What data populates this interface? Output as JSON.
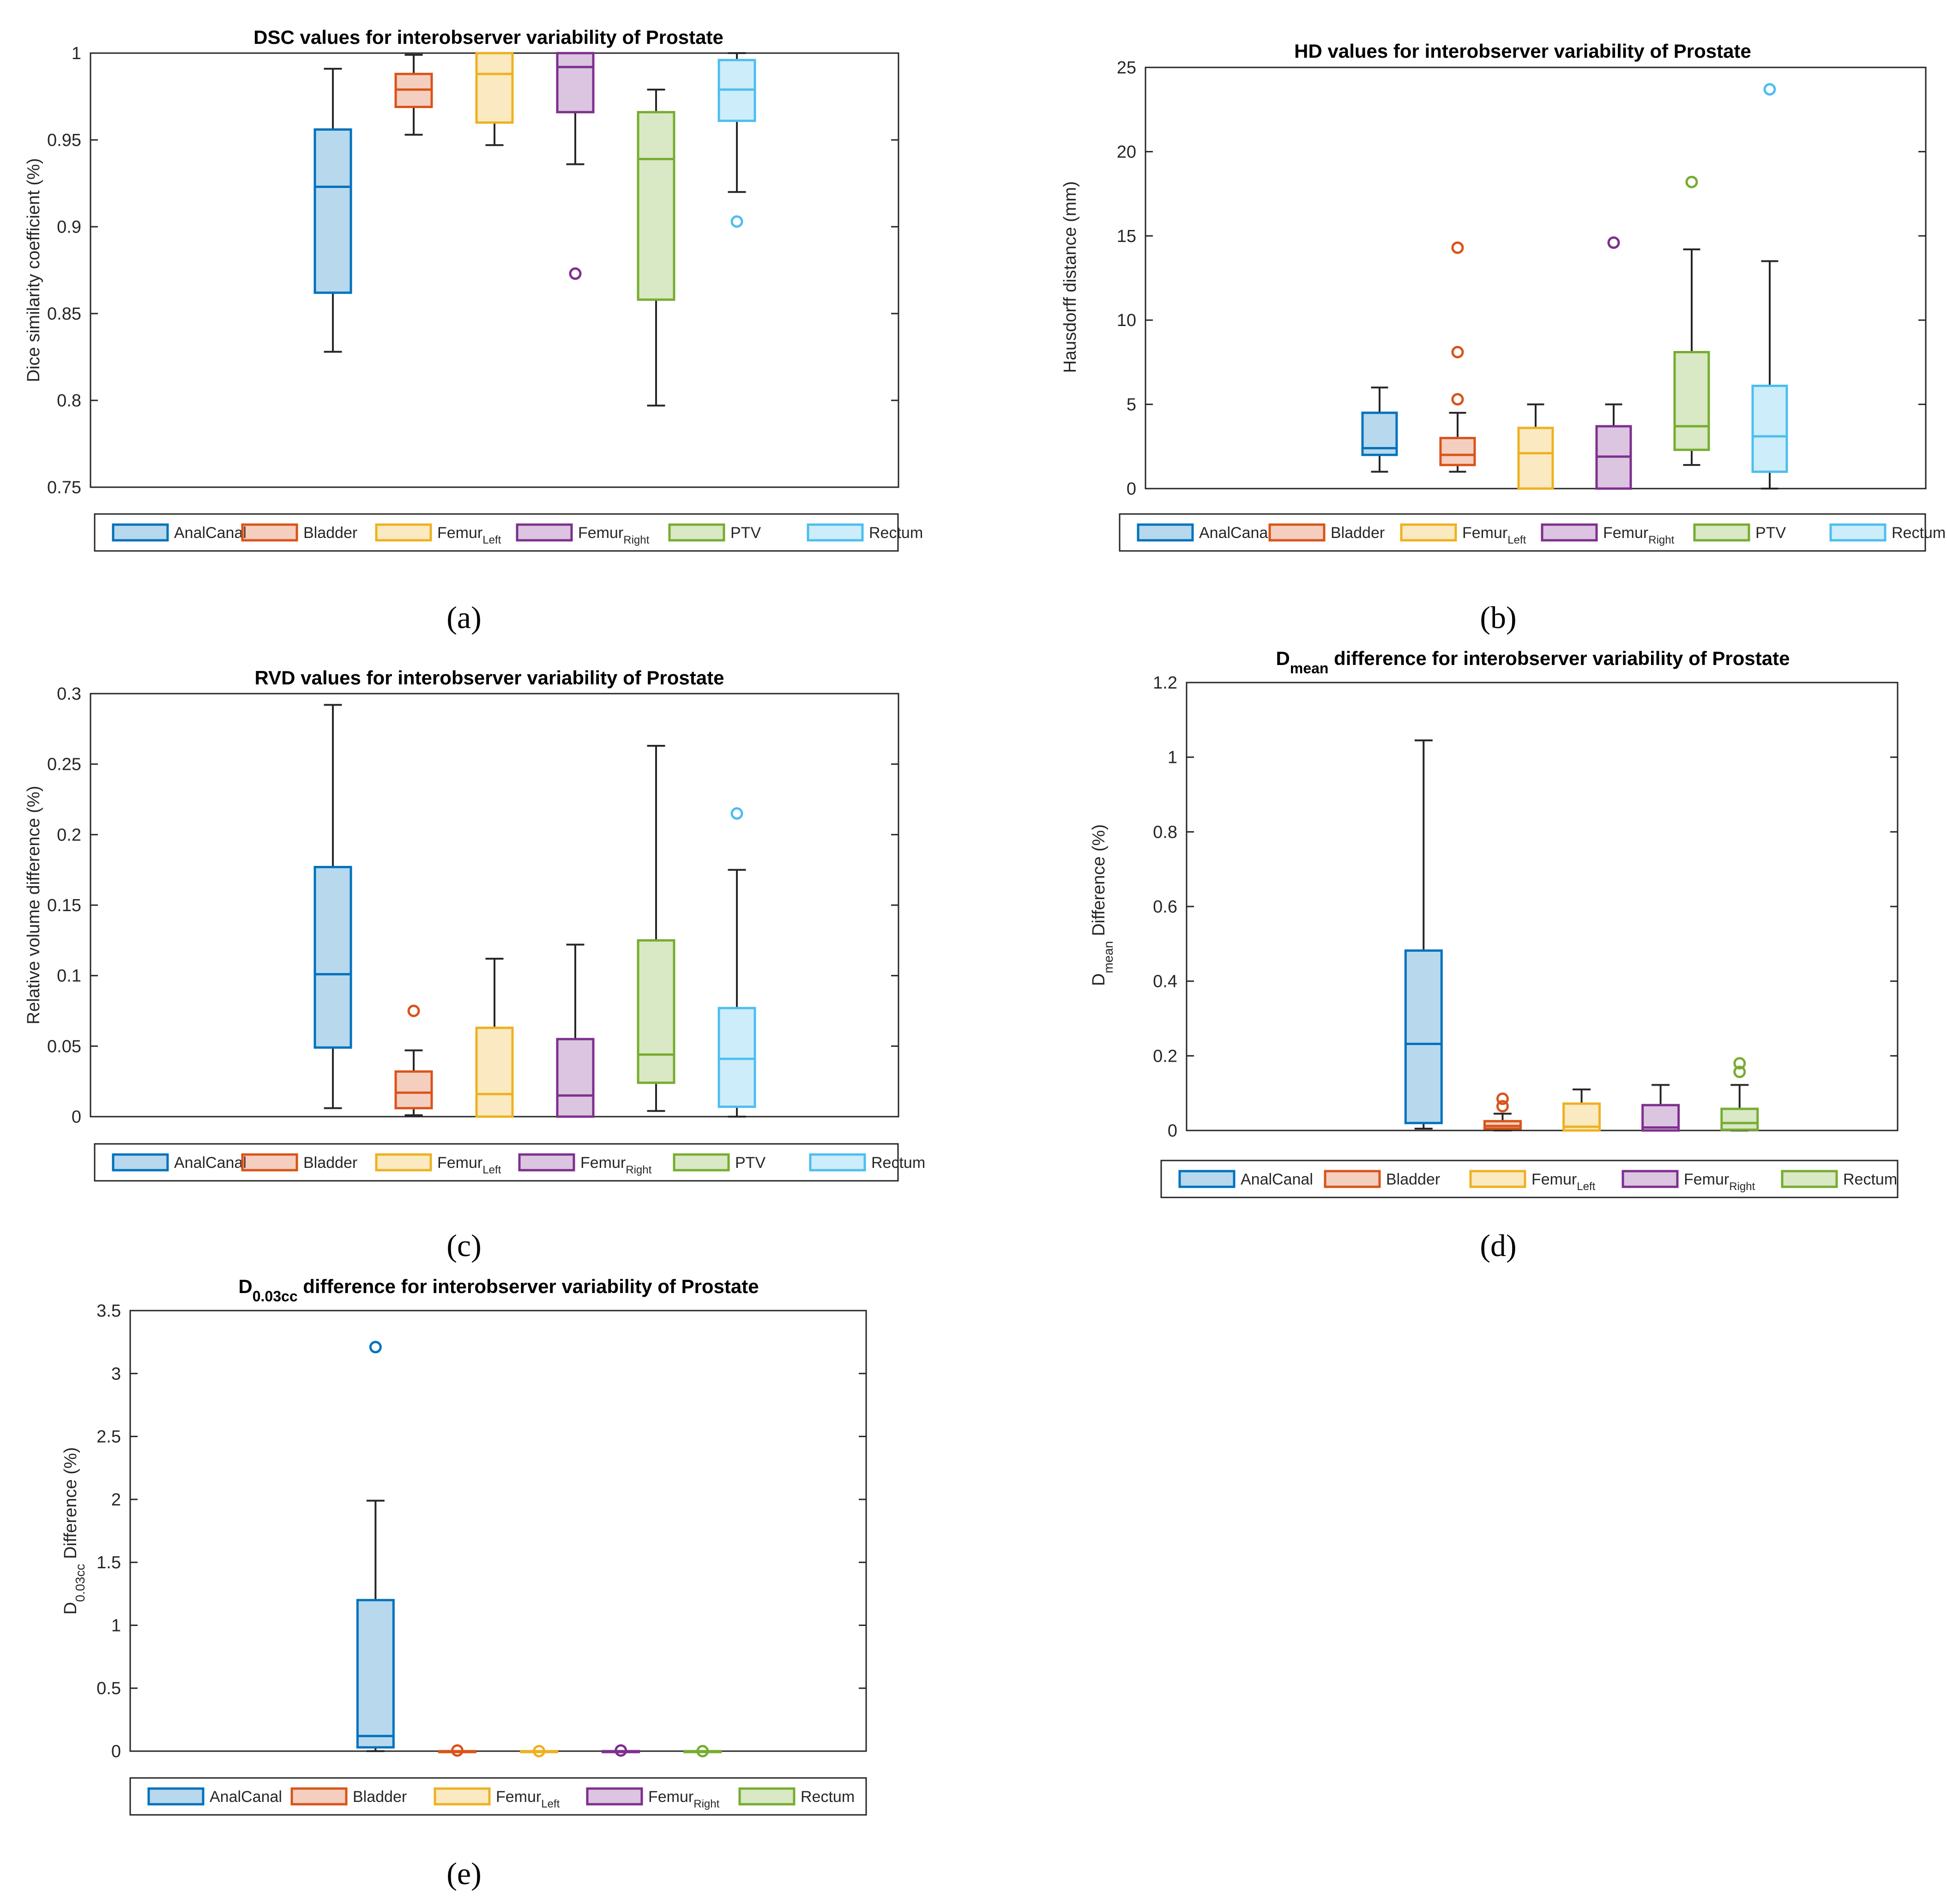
{
  "colors": {
    "AnalCanal": "#0072BD",
    "Bladder": "#D95319",
    "FemurLeft": "#EDB120",
    "FemurRight": "#7E2F8E",
    "PTV": "#77AC30",
    "Rectum": "#4DBEEE"
  },
  "chart_data": [
    {
      "type": "box",
      "panel": "(a)",
      "title": "DSC values for interobserver variability of Prostate",
      "ylabel": "Dice similarity coefficient (%)",
      "ylim": [
        0.75,
        1
      ],
      "yticks": [
        0.75,
        0.8,
        0.85,
        0.9,
        0.95,
        1
      ],
      "ytick_labels": [
        "0.75",
        "0.8",
        "0.85",
        "0.9",
        "0.95",
        "1"
      ],
      "legend": [
        {
          "name": "AnalCanal",
          "base": "AnalCanal",
          "sub": "",
          "color_key": "AnalCanal"
        },
        {
          "name": "Bladder",
          "base": "Bladder",
          "sub": "",
          "color_key": "Bladder"
        },
        {
          "name": "FemurLeft",
          "base": "Femur",
          "sub": "Left",
          "color_key": "FemurLeft"
        },
        {
          "name": "FemurRight",
          "base": "Femur",
          "sub": "Right",
          "color_key": "FemurRight"
        },
        {
          "name": "PTV",
          "base": "PTV",
          "sub": "",
          "color_key": "PTV"
        },
        {
          "name": "Rectum",
          "base": "Rectum",
          "sub": "",
          "color_key": "Rectum"
        }
      ],
      "series": [
        {
          "name": "AnalCanal",
          "pos": 3,
          "min": 0.828,
          "q1": 0.862,
          "median": 0.923,
          "q3": 0.956,
          "max": 0.991,
          "outliers": []
        },
        {
          "name": "Bladder",
          "pos": 4,
          "min": 0.953,
          "q1": 0.969,
          "median": 0.979,
          "q3": 0.988,
          "max": 0.999,
          "outliers": []
        },
        {
          "name": "FemurLeft",
          "pos": 5,
          "min": 0.947,
          "q1": 0.96,
          "median": 0.988,
          "q3": 1.0,
          "max": 1.0,
          "outliers": []
        },
        {
          "name": "FemurRight",
          "pos": 6,
          "min": 0.936,
          "q1": 0.966,
          "median": 0.992,
          "q3": 1.0,
          "max": 1.0,
          "outliers": [
            0.873
          ]
        },
        {
          "name": "PTV",
          "pos": 7,
          "min": 0.797,
          "q1": 0.858,
          "median": 0.939,
          "q3": 0.966,
          "max": 0.979,
          "outliers": []
        },
        {
          "name": "Rectum",
          "pos": 8,
          "min": 0.92,
          "q1": 0.961,
          "median": 0.979,
          "q3": 0.996,
          "max": 1.0,
          "outliers": [
            0.903
          ]
        }
      ]
    },
    {
      "type": "box",
      "panel": "(b)",
      "title": "HD values for interobserver variability of Prostate",
      "ylabel": "Hausdorff distance (mm)",
      "ylim": [
        0,
        25
      ],
      "yticks": [
        0,
        5,
        10,
        15,
        20,
        25
      ],
      "ytick_labels": [
        "0",
        "5",
        "10",
        "15",
        "20",
        "25"
      ],
      "legend": [
        {
          "name": "AnalCanal",
          "base": "AnalCanal",
          "sub": "",
          "color_key": "AnalCanal"
        },
        {
          "name": "Bladder",
          "base": "Bladder",
          "sub": "",
          "color_key": "Bladder"
        },
        {
          "name": "FemurLeft",
          "base": "Femur",
          "sub": "Left",
          "color_key": "FemurLeft"
        },
        {
          "name": "FemurRight",
          "base": "Femur",
          "sub": "Right",
          "color_key": "FemurRight"
        },
        {
          "name": "PTV",
          "base": "PTV",
          "sub": "",
          "color_key": "PTV"
        },
        {
          "name": "Rectum",
          "base": "Rectum",
          "sub": "",
          "color_key": "Rectum"
        }
      ],
      "series": [
        {
          "name": "AnalCanal",
          "pos": 3,
          "min": 1.0,
          "q1": 2.0,
          "median": 2.4,
          "q3": 4.5,
          "max": 6.0,
          "outliers": []
        },
        {
          "name": "Bladder",
          "pos": 4,
          "min": 1.0,
          "q1": 1.4,
          "median": 2.0,
          "q3": 3.0,
          "max": 4.5,
          "outliers": [
            5.3,
            8.1,
            14.3
          ]
        },
        {
          "name": "FemurLeft",
          "pos": 5,
          "min": 0,
          "q1": 0,
          "median": 2.1,
          "q3": 3.6,
          "max": 5.0,
          "outliers": []
        },
        {
          "name": "FemurRight",
          "pos": 6,
          "min": 0,
          "q1": 0,
          "median": 1.9,
          "q3": 3.7,
          "max": 5.0,
          "outliers": [
            14.6
          ]
        },
        {
          "name": "PTV",
          "pos": 7,
          "min": 1.4,
          "q1": 2.3,
          "median": 3.7,
          "q3": 8.1,
          "max": 14.2,
          "outliers": [
            18.2
          ]
        },
        {
          "name": "Rectum",
          "pos": 8,
          "min": 0,
          "q1": 1.0,
          "median": 3.1,
          "q3": 6.1,
          "max": 13.5,
          "outliers": [
            23.7
          ]
        }
      ]
    },
    {
      "type": "box",
      "panel": "(c)",
      "title": "RVD values for interobserver variability of Prostate",
      "ylabel": "Relative volume difference (%)",
      "ylim": [
        0,
        0.3
      ],
      "yticks": [
        0,
        0.05,
        0.1,
        0.15,
        0.2,
        0.25,
        0.3
      ],
      "ytick_labels": [
        "0",
        "0.05",
        "0.1",
        "0.15",
        "0.2",
        "0.25",
        "0.3"
      ],
      "legend": [
        {
          "name": "AnalCanal",
          "base": "AnalCanal",
          "sub": "",
          "color_key": "AnalCanal"
        },
        {
          "name": "Bladder",
          "base": "Bladder",
          "sub": "",
          "color_key": "Bladder"
        },
        {
          "name": "FemurLeft",
          "base": "Femur",
          "sub": "Left",
          "color_key": "FemurLeft"
        },
        {
          "name": "FemurRight",
          "base": "Femur",
          "sub": "Right",
          "color_key": "FemurRight"
        },
        {
          "name": "PTV",
          "base": "PTV",
          "sub": "",
          "color_key": "PTV"
        },
        {
          "name": "Rectum",
          "base": "Rectum",
          "sub": "",
          "color_key": "Rectum"
        }
      ],
      "series": [
        {
          "name": "AnalCanal",
          "pos": 3,
          "min": 0.006,
          "q1": 0.049,
          "median": 0.101,
          "q3": 0.177,
          "max": 0.292,
          "outliers": []
        },
        {
          "name": "Bladder",
          "pos": 4,
          "min": 0.001,
          "q1": 0.006,
          "median": 0.017,
          "q3": 0.032,
          "max": 0.047,
          "outliers": [
            0.075
          ]
        },
        {
          "name": "FemurLeft",
          "pos": 5,
          "min": 0,
          "q1": 0,
          "median": 0.016,
          "q3": 0.063,
          "max": 0.112,
          "outliers": []
        },
        {
          "name": "FemurRight",
          "pos": 6,
          "min": 0,
          "q1": 0,
          "median": 0.015,
          "q3": 0.055,
          "max": 0.122,
          "outliers": []
        },
        {
          "name": "PTV",
          "pos": 7,
          "min": 0.004,
          "q1": 0.024,
          "median": 0.044,
          "q3": 0.125,
          "max": 0.263,
          "outliers": []
        },
        {
          "name": "Rectum",
          "pos": 8,
          "min": 0,
          "q1": 0.007,
          "median": 0.041,
          "q3": 0.077,
          "max": 0.175,
          "outliers": [
            0.215
          ]
        }
      ]
    },
    {
      "type": "box",
      "panel": "(d)",
      "title_base": "D",
      "title_sub": "mean",
      "title_rest": " difference for interobserver variability of Prostate",
      "ylabel_base": "D",
      "ylabel_sub": "mean",
      "ylabel_rest": " Difference (%)",
      "ylim": [
        0,
        1.2
      ],
      "yticks": [
        0,
        0.2,
        0.4,
        0.6,
        0.8,
        1,
        1.2
      ],
      "ytick_labels": [
        "0",
        "0.2",
        "0.4",
        "0.6",
        "0.8",
        "1",
        "1.2"
      ],
      "legend": [
        {
          "name": "AnalCanal",
          "base": "AnalCanal",
          "sub": "",
          "color_key": "AnalCanal"
        },
        {
          "name": "Bladder",
          "base": "Bladder",
          "sub": "",
          "color_key": "Bladder"
        },
        {
          "name": "FemurLeft",
          "base": "Femur",
          "sub": "Left",
          "color_key": "FemurLeft"
        },
        {
          "name": "FemurRight",
          "base": "Femur",
          "sub": "Right",
          "color_key": "FemurRight"
        },
        {
          "name": "Rectum",
          "base": "Rectum",
          "sub": "",
          "color_key": "PTV"
        }
      ],
      "series": [
        {
          "name": "AnalCanal",
          "pos": 3,
          "color_key": "AnalCanal",
          "min": 0.005,
          "q1": 0.02,
          "median": 0.232,
          "q3": 0.482,
          "max": 1.045,
          "outliers": []
        },
        {
          "name": "Bladder",
          "pos": 4,
          "color_key": "Bladder",
          "min": 0,
          "q1": 0.005,
          "median": 0.012,
          "q3": 0.025,
          "max": 0.045,
          "outliers": [
            0.065,
            0.085
          ]
        },
        {
          "name": "FemurLeft",
          "pos": 5,
          "color_key": "FemurLeft",
          "min": 0,
          "q1": 0,
          "median": 0.01,
          "q3": 0.072,
          "max": 0.11,
          "outliers": []
        },
        {
          "name": "FemurRight",
          "pos": 6,
          "color_key": "FemurRight",
          "min": 0,
          "q1": 0,
          "median": 0.008,
          "q3": 0.068,
          "max": 0.122,
          "outliers": []
        },
        {
          "name": "Rectum",
          "pos": 7,
          "color_key": "PTV",
          "min": 0,
          "q1": 0.002,
          "median": 0.02,
          "q3": 0.058,
          "max": 0.122,
          "outliers": [
            0.157,
            0.18
          ]
        }
      ]
    },
    {
      "type": "box",
      "panel": "(e)",
      "title_base": "D",
      "title_sub": "0.03cc",
      "title_rest": " difference for interobserver variability of Prostate",
      "ylabel_base": "D",
      "ylabel_sub": "0.03cc",
      "ylabel_rest": " Difference (%)",
      "ylim": [
        0,
        3.5
      ],
      "yticks": [
        0,
        0.5,
        1,
        1.5,
        2,
        2.5,
        3,
        3.5
      ],
      "ytick_labels": [
        "0",
        "0.5",
        "1",
        "1.5",
        "2",
        "2.5",
        "3",
        "3.5"
      ],
      "legend": [
        {
          "name": "AnalCanal",
          "base": "AnalCanal",
          "sub": "",
          "color_key": "AnalCanal"
        },
        {
          "name": "Bladder",
          "base": "Bladder",
          "sub": "",
          "color_key": "Bladder"
        },
        {
          "name": "FemurLeft",
          "base": "Femur",
          "sub": "Left",
          "color_key": "FemurLeft"
        },
        {
          "name": "FemurRight",
          "base": "Femur",
          "sub": "Right",
          "color_key": "FemurRight"
        },
        {
          "name": "Rectum",
          "base": "Rectum",
          "sub": "",
          "color_key": "PTV"
        }
      ],
      "series": [
        {
          "name": "AnalCanal",
          "pos": 3,
          "color_key": "AnalCanal",
          "min": 0.0,
          "q1": 0.03,
          "median": 0.12,
          "q3": 1.2,
          "max": 1.99,
          "outliers": [
            3.21
          ]
        },
        {
          "name": "Bladder",
          "pos": 4,
          "color_key": "Bladder",
          "min": 0,
          "q1": 0,
          "median": 0,
          "q3": 0,
          "max": 0,
          "outliers": [
            0.005
          ]
        },
        {
          "name": "FemurLeft",
          "pos": 5,
          "color_key": "FemurLeft",
          "min": 0,
          "q1": 0,
          "median": 0,
          "q3": 0,
          "max": 0,
          "outliers": [
            0.0
          ]
        },
        {
          "name": "FemurRight",
          "pos": 6,
          "color_key": "FemurRight",
          "min": 0,
          "q1": 0,
          "median": 0,
          "q3": 0,
          "max": 0,
          "outliers": [
            0.005
          ]
        },
        {
          "name": "Rectum",
          "pos": 7,
          "color_key": "PTV",
          "min": 0,
          "q1": 0,
          "median": 0,
          "q3": 0,
          "max": 0,
          "outliers": [
            0.0
          ]
        }
      ]
    }
  ]
}
